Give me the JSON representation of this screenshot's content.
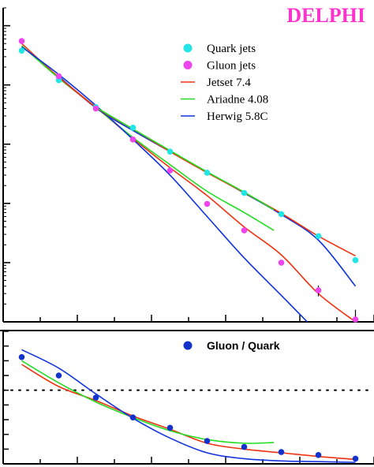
{
  "brand": {
    "label": "DELPHI",
    "color": "#ff33cc"
  },
  "colors": {
    "quark": "#22e6e6",
    "gluon": "#ee44ee",
    "jetset": "#ee3311",
    "ariadne": "#22dd22",
    "herwig": "#1133dd",
    "ratio_points": "#1133cc",
    "axes": "#000000"
  },
  "chart_data": [
    {
      "type": "scatter",
      "title": "",
      "xlabel": "",
      "ylabel": "",
      "scale": {
        "y": "log"
      },
      "xlim": [
        0,
        10
      ],
      "ylim": [
        0.0001,
        20
      ],
      "grid": false,
      "legend_position": "top-right",
      "series": [
        {
          "name": "Quark jets",
          "kind": "points",
          "color_key": "quark",
          "x": [
            0.5,
            1.5,
            2.5,
            3.5,
            4.5,
            5.5,
            6.5,
            7.5,
            8.5,
            9.5
          ],
          "y": [
            3.8,
            1.2,
            0.42,
            0.19,
            0.075,
            0.033,
            0.015,
            0.0066,
            0.0028,
            0.0011
          ]
        },
        {
          "name": "Gluon jets",
          "kind": "points",
          "color_key": "gluon",
          "x": [
            0.5,
            1.5,
            2.5,
            3.5,
            4.5,
            5.5,
            6.5,
            7.5,
            8.5,
            9.5
          ],
          "y": [
            5.5,
            1.4,
            0.4,
            0.12,
            0.036,
            0.0098,
            0.0035,
            0.001,
            0.00034,
            0.00011
          ],
          "err": [
            0,
            0,
            0,
            0,
            0,
            0,
            0,
            0,
            7e-05,
            5e-05
          ]
        },
        {
          "name": "Jetset 7.4",
          "kind": "line",
          "color_key": "jetset",
          "x": [
            0.5,
            1.5,
            2.5,
            3.5,
            4.5,
            5.5,
            6.5,
            7.5,
            8.5,
            9.5
          ],
          "y": [
            5.0,
            1.35,
            0.42,
            0.125,
            0.04,
            0.0135,
            0.004,
            0.00135,
            0.0003,
            6.5e-05
          ]
        },
        {
          "name": "Ariadne 4.08",
          "kind": "line",
          "color_key": "ariadne",
          "x": [
            0.5,
            1.5,
            2.5,
            3.5,
            4.5,
            5.5,
            6.5,
            7.3
          ],
          "y": [
            4.6,
            1.3,
            0.42,
            0.13,
            0.045,
            0.016,
            0.007,
            0.0035
          ]
        },
        {
          "name": "Herwig 5.8C",
          "kind": "line",
          "color_key": "herwig",
          "x": [
            0.5,
            1.5,
            2.5,
            3.5,
            4.5,
            5.5,
            6.5,
            7.5,
            8.2
          ],
          "y": [
            4.4,
            1.5,
            0.45,
            0.12,
            0.03,
            0.006,
            0.0012,
            0.00028,
            0.0001
          ]
        },
        {
          "name": "Herwig 5.8C (quark)",
          "kind": "line",
          "color_key": "herwig",
          "legend": false,
          "x": [
            1.5,
            2.5,
            3.5,
            4.5,
            5.5,
            6.5,
            7.5,
            8.5,
            9.5
          ],
          "y": [
            1.4,
            0.41,
            0.17,
            0.075,
            0.034,
            0.015,
            0.0065,
            0.0024,
            0.0004
          ]
        },
        {
          "name": "Jetset 7.4 (quark)",
          "kind": "line",
          "color_key": "jetset",
          "legend": false,
          "x": [
            1.5,
            2.5,
            3.5,
            4.5,
            5.5,
            6.5,
            7.5,
            8.5,
            9.5
          ],
          "y": [
            1.35,
            0.42,
            0.18,
            0.075,
            0.033,
            0.0152,
            0.0068,
            0.0028,
            0.0013
          ]
        },
        {
          "name": "Ariadne 4.08 (quark)",
          "kind": "line",
          "color_key": "ariadne",
          "legend": false,
          "x": [
            2.5,
            3.5,
            4.5,
            5.5,
            6.5,
            7.3
          ],
          "y": [
            0.42,
            0.18,
            0.078,
            0.034,
            0.0155,
            0.0078
          ]
        }
      ],
      "legend": [
        {
          "label": "Quark jets",
          "marker": "dot",
          "color_key": "quark"
        },
        {
          "label": "Gluon jets",
          "marker": "dot",
          "color_key": "gluon"
        },
        {
          "label": "Jetset 7.4",
          "marker": "line",
          "color_key": "jetset"
        },
        {
          "label": "Ariadne 4.08",
          "marker": "line",
          "color_key": "ariadne"
        },
        {
          "label": "Herwig 5.8C",
          "marker": "line",
          "color_key": "herwig"
        }
      ]
    },
    {
      "type": "scatter",
      "title": "",
      "xlabel": "",
      "ylabel": "",
      "xlim": [
        0,
        10
      ],
      "ylim": [
        0,
        1.8
      ],
      "reference_line": 1,
      "grid": false,
      "legend_position": "top-right",
      "series": [
        {
          "name": "Gluon / Quark",
          "kind": "points",
          "color_key": "ratio_points",
          "x": [
            0.5,
            1.5,
            2.5,
            3.5,
            4.5,
            5.5,
            6.5,
            7.5,
            8.5,
            9.5
          ],
          "y": [
            1.45,
            1.2,
            0.9,
            0.63,
            0.49,
            0.31,
            0.23,
            0.16,
            0.12,
            0.07
          ]
        },
        {
          "name": "Jetset 7.4",
          "kind": "line",
          "color_key": "jetset",
          "legend": false,
          "x": [
            0.5,
            1.5,
            2.5,
            3.5,
            4.5,
            5.5,
            6.5,
            7.5,
            8.5,
            9.5
          ],
          "y": [
            1.35,
            1.05,
            0.86,
            0.65,
            0.47,
            0.28,
            0.2,
            0.15,
            0.1,
            0.06
          ]
        },
        {
          "name": "Ariadne 4.08",
          "kind": "line",
          "color_key": "ariadne",
          "legend": false,
          "x": [
            0.5,
            1.5,
            2.5,
            3.5,
            4.5,
            5.5,
            6.5,
            7.3
          ],
          "y": [
            1.4,
            1.1,
            0.84,
            0.63,
            0.45,
            0.33,
            0.28,
            0.29
          ]
        },
        {
          "name": "Herwig 5.8C",
          "kind": "line",
          "color_key": "herwig",
          "legend": false,
          "x": [
            0.5,
            1.5,
            2.5,
            3.5,
            4.5,
            5.5,
            6.5,
            7.5,
            8.5,
            9.5
          ],
          "y": [
            1.55,
            1.3,
            0.95,
            0.62,
            0.35,
            0.15,
            0.07,
            0.04,
            0.03,
            0.02
          ]
        }
      ],
      "legend": [
        {
          "label": "Gluon / Quark",
          "marker": "dot",
          "color_key": "ratio_points"
        }
      ]
    }
  ]
}
